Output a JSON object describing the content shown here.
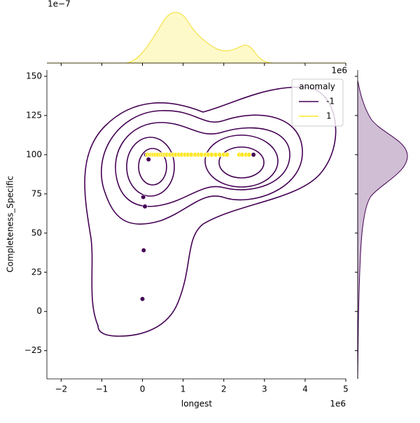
{
  "chart_data": {
    "type": "scatter",
    "x_label": "longest",
    "y_label": "Completeness_Specific",
    "x_offset_label": "1e6",
    "right_margin_offset_label": "1e6",
    "top_margin_offset_label": "1e−7",
    "xlim": [
      -2.35,
      5.0
    ],
    "ylim": [
      -43,
      154
    ],
    "xticks": [
      {
        "value": -2,
        "label": "−2"
      },
      {
        "value": -1,
        "label": "−1"
      },
      0,
      1,
      2,
      3,
      4,
      5
    ],
    "yticks": [
      {
        "value": -25,
        "label": "−25"
      },
      0,
      25,
      50,
      75,
      100,
      125,
      150
    ],
    "legend_title": "anomaly",
    "legend_position": "upper right",
    "series": [
      {
        "name": "-1",
        "color": "#440154",
        "x": [
          0.09,
          0.15,
          0.02,
          0.06,
          0.03,
          0.0,
          2.73
        ],
        "y": [
          100,
          97,
          73,
          67,
          39,
          8,
          100
        ]
      },
      {
        "name": "1",
        "color": "#fde725",
        "x": [
          0.12,
          0.18,
          0.22,
          0.27,
          0.32,
          0.38,
          0.45,
          0.5,
          0.55,
          0.6,
          0.68,
          0.75,
          0.82,
          0.9,
          0.97,
          1.05,
          1.12,
          1.2,
          1.3,
          1.38,
          1.45,
          1.55,
          1.62,
          1.7,
          1.8,
          1.9,
          2.0,
          2.08,
          2.38,
          2.45,
          2.55,
          2.62
        ],
        "y": [
          100,
          100,
          100,
          100,
          100,
          100,
          100,
          100,
          100,
          100,
          100,
          100,
          100,
          100,
          100,
          100,
          100,
          100,
          100,
          100,
          100,
          100,
          100,
          100,
          100,
          100,
          100,
          100,
          100,
          100,
          100,
          100
        ]
      }
    ]
  }
}
